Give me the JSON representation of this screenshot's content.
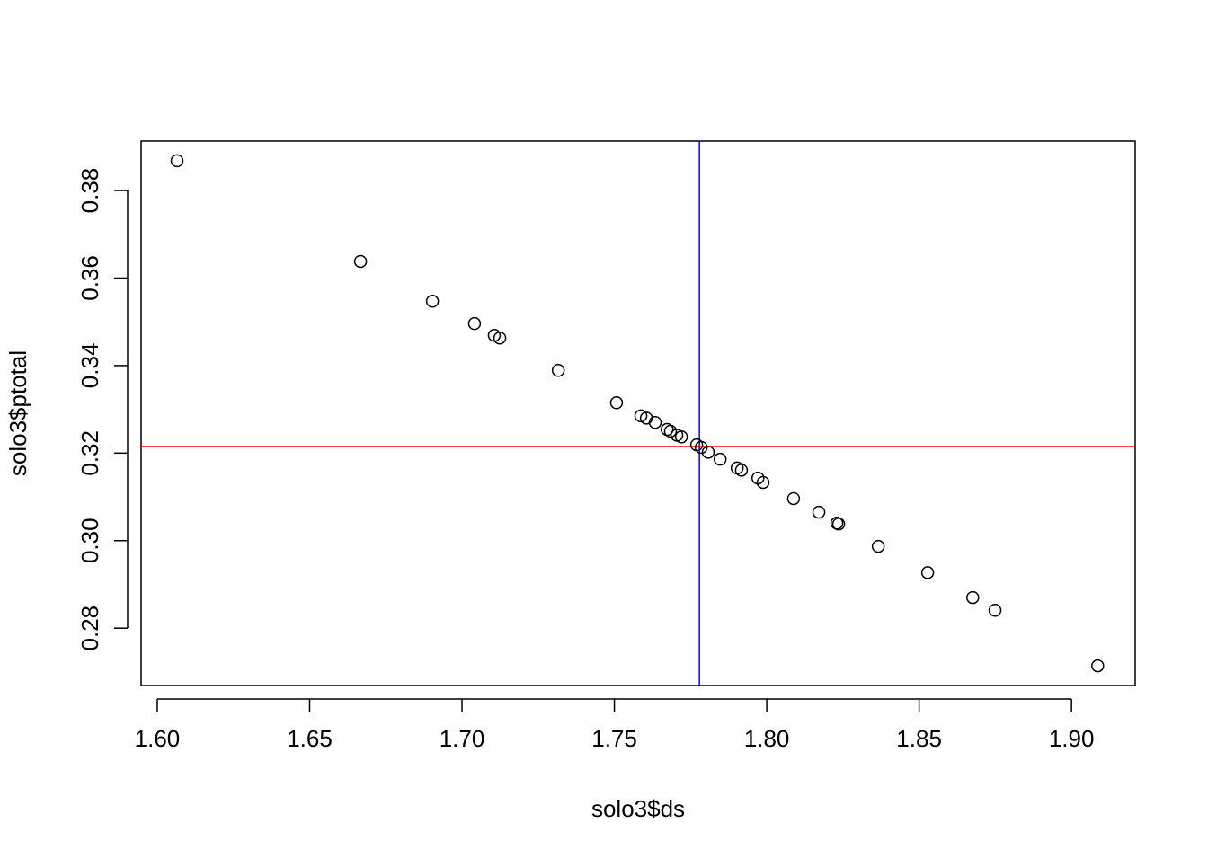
{
  "chart_data": {
    "type": "scatter",
    "xlabel": "solo3$ds",
    "ylabel": "solo3$ptotal",
    "x": [
      1.6065,
      1.6667,
      1.6903,
      1.7041,
      1.7106,
      1.7124,
      1.7316,
      1.7507,
      1.7587,
      1.7605,
      1.7634,
      1.7673,
      1.7684,
      1.7705,
      1.772,
      1.777,
      1.7785,
      1.7808,
      1.7847,
      1.7903,
      1.7917,
      1.7971,
      1.7988,
      1.8088,
      1.8171,
      1.823,
      1.8236,
      1.8366,
      1.8528,
      1.8676,
      1.8749,
      1.9086
    ],
    "values": [
      0.3868,
      0.3638,
      0.3547,
      0.3496,
      0.3469,
      0.3463,
      0.3389,
      0.3315,
      0.3285,
      0.328,
      0.327,
      0.3254,
      0.325,
      0.3241,
      0.3237,
      0.3219,
      0.3213,
      0.3202,
      0.3186,
      0.3166,
      0.3161,
      0.3143,
      0.3133,
      0.3096,
      0.3065,
      0.304,
      0.3038,
      0.2987,
      0.2927,
      0.287,
      0.2841,
      0.2714
    ],
    "color": "#000000",
    "xlim": [
      1.5947,
      1.9209
    ],
    "ylim": [
      0.2669,
      0.3913
    ],
    "xticks": [
      {
        "value": 1.6,
        "label": "1.60"
      },
      1.65,
      {
        "value": 1.7,
        "label": "1.70"
      },
      1.75,
      {
        "value": 1.8,
        "label": "1.80"
      },
      1.85,
      {
        "value": 1.9,
        "label": "1.90"
      }
    ],
    "yticks": [
      0.28,
      {
        "value": 0.3,
        "label": "0.30"
      },
      0.32,
      0.34,
      0.36,
      0.38
    ],
    "vline": {
      "value": 1.7779,
      "color": "#0000ff"
    },
    "hline": {
      "value": 0.3215,
      "color": "#ff0000"
    }
  }
}
